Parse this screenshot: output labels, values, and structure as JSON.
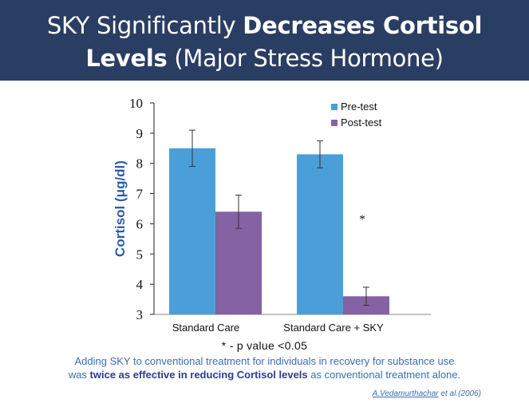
{
  "header": {
    "title_line1_light": "SKY Significantly ",
    "title_line1_bold": "Decreases Cortisol",
    "title_line2_bold": "Levels",
    "title_line2_light": " (Major Stress Hormone)"
  },
  "colors": {
    "header_bg": "#2a3d63",
    "pre_test": "#4a9fd8",
    "post_test": "#8462a4",
    "text_blue": "#3a6db5"
  },
  "chart_data": {
    "type": "bar",
    "title": "",
    "xlabel": "",
    "ylabel": "Cortisol (μg/dl)",
    "ylim": [
      3,
      10
    ],
    "yticks": [
      "3",
      "4",
      "5",
      "6",
      "7",
      "8",
      "9",
      "10"
    ],
    "categories": [
      "Standard Care",
      "Standard Care + SKY"
    ],
    "series": [
      {
        "name": "Pre-test",
        "values": [
          8.5,
          8.3
        ],
        "errors": [
          0.6,
          0.45
        ]
      },
      {
        "name": "Post-test",
        "values": [
          6.4,
          3.6
        ],
        "errors": [
          0.55,
          0.3
        ]
      }
    ],
    "annotations": [
      {
        "category": "Standard Care + SKY",
        "text": "*"
      }
    ],
    "legend": "top-right"
  },
  "footnote": "* - p value <0.05",
  "finding": {
    "part1": "Adding SKY to  conventional treatment for individuals in recovery for substance use",
    "part2_prefix": "was ",
    "part2_bold": "twice as effective in reducing Cortisol levels",
    "part2_suffix": " as conventional treatment alone."
  },
  "citation": {
    "author": "A.Vedamurthachar",
    "rest": " et al.(2006)"
  }
}
